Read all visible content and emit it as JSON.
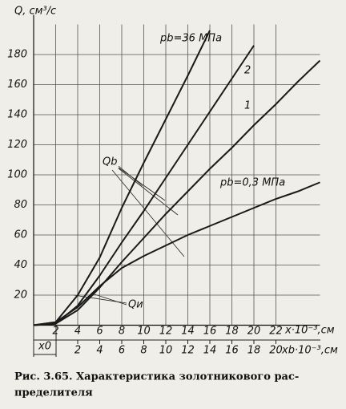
{
  "chart_data": {
    "type": "line",
    "y_label": "Q, см³/с",
    "x_label": "x·10⁻³,см",
    "x2_label": "xb·10⁻³,см",
    "x0_label": "x0",
    "x": [
      0,
      2,
      4,
      6,
      8,
      10,
      12,
      14,
      16,
      18,
      20,
      22,
      24,
      26
    ],
    "series": [
      {
        "name": "pb=36 МПа",
        "color": "#1a1a1a",
        "values": [
          0,
          2,
          20,
          45,
          78,
          108,
          137,
          166,
          196,
          null,
          null,
          null,
          null,
          null
        ]
      },
      {
        "name": "2",
        "color": "#1a1a1a",
        "values": [
          0,
          1,
          13,
          33,
          55,
          76,
          98,
          120,
          142,
          164,
          186,
          null,
          null,
          null
        ]
      },
      {
        "name": "1",
        "color": "#1a1a1a",
        "values": [
          0,
          1,
          10,
          25,
          42,
          58,
          74,
          89,
          104,
          118,
          133,
          147,
          162,
          176
        ]
      },
      {
        "name": "pb=0,3 МПа",
        "color": "#1a1a1a",
        "values": [
          0,
          2,
          12,
          26,
          38,
          46,
          53,
          60,
          66,
          72,
          78,
          84,
          89,
          95
        ]
      }
    ],
    "annotations": [
      "Qb",
      "Qи"
    ],
    "xlim": [
      0,
      26
    ],
    "xticks": [
      2,
      4,
      6,
      8,
      10,
      12,
      14,
      16,
      18,
      20,
      22
    ],
    "x2lim": [
      -2,
      24
    ],
    "x2ticks": [
      2,
      4,
      6,
      8,
      10,
      12,
      14,
      16,
      18,
      20
    ],
    "ylim": [
      0,
      200
    ],
    "yticks": [
      20,
      40,
      60,
      80,
      100,
      120,
      140,
      160,
      180
    ],
    "grid": true
  },
  "caption": [
    "Рис. 3.65. Характеристика золотникового рас-",
    "пределителя"
  ]
}
